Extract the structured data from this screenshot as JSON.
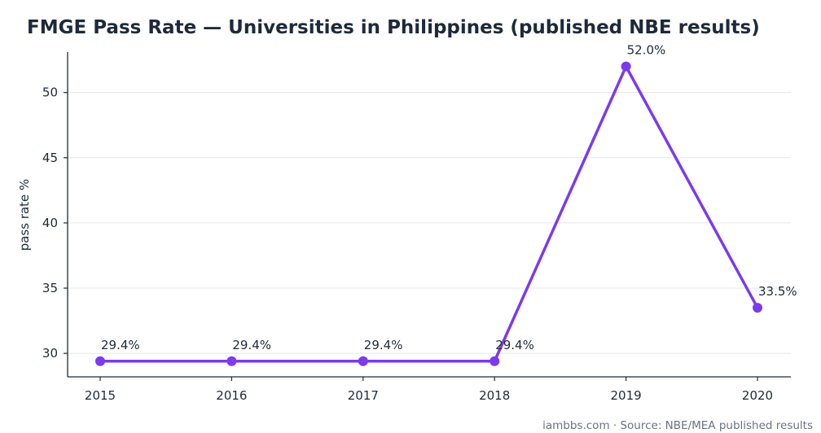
{
  "chart_data": {
    "type": "line",
    "title": "FMGE Pass Rate — Universities in Philippines (published NBE results)",
    "xlabel": "",
    "ylabel": "pass rate %",
    "x": [
      "2015",
      "2016",
      "2017",
      "2018",
      "2019",
      "2020"
    ],
    "series": [
      {
        "values": [
          29.4,
          29.4,
          29.4,
          29.4,
          52.0,
          33.5
        ]
      }
    ],
    "data_labels": [
      "29.4%",
      "29.4%",
      "29.4%",
      "29.4%",
      "52.0%",
      "33.5%"
    ],
    "yticks": [
      30,
      35,
      40,
      45,
      50
    ],
    "ylim": [
      28.2,
      53.1
    ],
    "grid": "horizontal",
    "legend": "none",
    "line_color": "#7c3aed",
    "source_note": "iambbs.com · Source: NBE/MEA published results"
  }
}
